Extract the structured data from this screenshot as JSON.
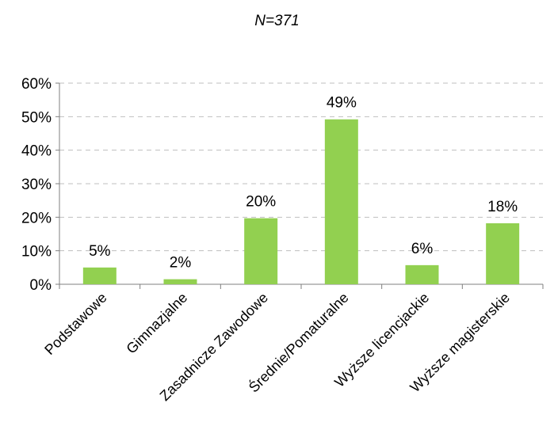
{
  "chart_data": {
    "type": "bar",
    "title": "N=371",
    "categories": [
      "Podstawowe",
      "Gimnazjalne",
      "Zasadnicze Zawodowe",
      "Średnie/Pomaturalne",
      "Wyższe licencjackie",
      "Wyższe magisterskie"
    ],
    "values": [
      5,
      1.5,
      19.7,
      49.2,
      5.7,
      18.2
    ],
    "data_labels": [
      "5%",
      "2%",
      "20%",
      "49%",
      "6%",
      "18%"
    ],
    "y_ticks": [
      "0%",
      "10%",
      "20%",
      "30%",
      "40%",
      "50%",
      "60%"
    ],
    "ylim": [
      0,
      60
    ],
    "grid": true,
    "legend": "none",
    "bar_color": "#92d050",
    "grid_color": "#bfbfbf",
    "axis_color": "#7f7f7f"
  }
}
